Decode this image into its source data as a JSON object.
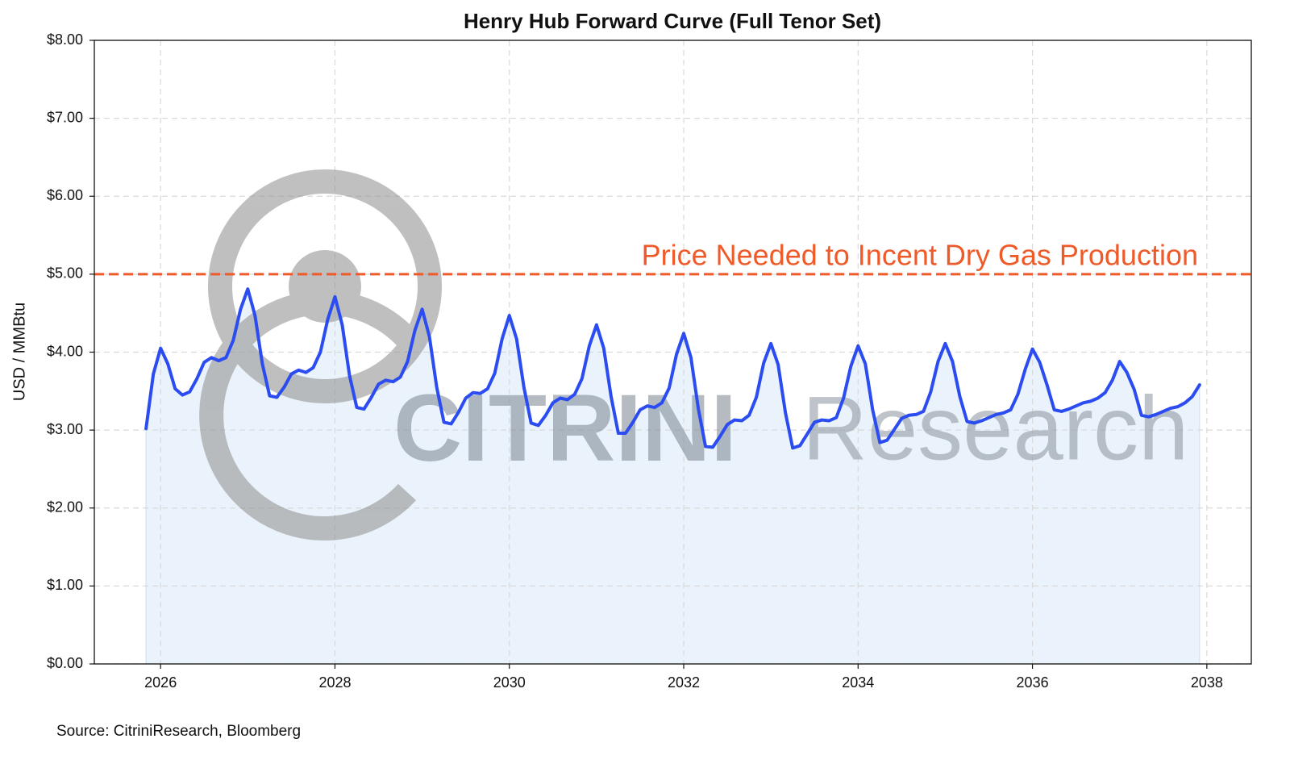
{
  "chart_data": {
    "type": "line",
    "title": "Henry Hub Forward Curve (Full Tenor Set)",
    "ylabel": "USD / MMBtu",
    "source": "Source: CitriniResearch, Bloomberg",
    "watermark": {
      "bold": "CITRINI",
      "light": "Research"
    },
    "color": "#2b4cf0",
    "fill_color": "#eaf3fb",
    "grid": true,
    "xlim": [
      2025.24,
      2038.51
    ],
    "xticks": [
      2026,
      2028,
      2030,
      2032,
      2034,
      2036,
      2038
    ],
    "ylim": [
      0,
      8
    ],
    "yticks": [
      {
        "value": 0,
        "label": "$0.00"
      },
      {
        "value": 1,
        "label": "$1.00"
      },
      {
        "value": 2,
        "label": "$2.00"
      },
      {
        "value": 3,
        "label": "$3.00"
      },
      {
        "value": 4,
        "label": "$4.00"
      },
      {
        "value": 5,
        "label": "$5.00"
      },
      {
        "value": 6,
        "label": "$6.00"
      },
      {
        "value": 7,
        "label": "$7.00"
      },
      {
        "value": 8,
        "label": "$8.00"
      }
    ],
    "reference_line": {
      "value": 5,
      "label": "Price Needed to Incent Dry Gas Production",
      "color": "#f05a28"
    },
    "x": [
      2025.833,
      2025.917,
      2026,
      2026.083,
      2026.167,
      2026.25,
      2026.333,
      2026.417,
      2026.5,
      2026.583,
      2026.667,
      2026.75,
      2026.833,
      2026.917,
      2027,
      2027.083,
      2027.167,
      2027.25,
      2027.333,
      2027.417,
      2027.5,
      2027.583,
      2027.667,
      2027.75,
      2027.833,
      2027.917,
      2028,
      2028.083,
      2028.167,
      2028.25,
      2028.333,
      2028.417,
      2028.5,
      2028.583,
      2028.667,
      2028.75,
      2028.833,
      2028.917,
      2029,
      2029.083,
      2029.167,
      2029.25,
      2029.333,
      2029.417,
      2029.5,
      2029.583,
      2029.667,
      2029.75,
      2029.833,
      2029.917,
      2030,
      2030.083,
      2030.167,
      2030.25,
      2030.333,
      2030.417,
      2030.5,
      2030.583,
      2030.667,
      2030.75,
      2030.833,
      2030.917,
      2031,
      2031.083,
      2031.167,
      2031.25,
      2031.333,
      2031.417,
      2031.5,
      2031.583,
      2031.667,
      2031.75,
      2031.833,
      2031.917,
      2032,
      2032.083,
      2032.167,
      2032.25,
      2032.333,
      2032.417,
      2032.5,
      2032.583,
      2032.667,
      2032.75,
      2032.833,
      2032.917,
      2033,
      2033.083,
      2033.167,
      2033.25,
      2033.333,
      2033.417,
      2033.5,
      2033.583,
      2033.667,
      2033.75,
      2033.833,
      2033.917,
      2034,
      2034.083,
      2034.167,
      2034.25,
      2034.333,
      2034.417,
      2034.5,
      2034.583,
      2034.667,
      2034.75,
      2034.833,
      2034.917,
      2035,
      2035.083,
      2035.167,
      2035.25,
      2035.333,
      2035.417,
      2035.5,
      2035.583,
      2035.667,
      2035.75,
      2035.833,
      2035.917,
      2036,
      2036.083,
      2036.167,
      2036.25,
      2036.333,
      2036.417,
      2036.5,
      2036.583,
      2036.667,
      2036.75,
      2036.833,
      2036.917,
      2037,
      2037.083,
      2037.167,
      2037.25,
      2037.333,
      2037.417,
      2037.5,
      2037.583,
      2037.667,
      2037.75,
      2037.833,
      2037.917
    ],
    "values": [
      3.02,
      3.72,
      4.05,
      3.85,
      3.53,
      3.45,
      3.49,
      3.66,
      3.87,
      3.93,
      3.89,
      3.93,
      4.15,
      4.55,
      4.81,
      4.47,
      3.85,
      3.44,
      3.42,
      3.55,
      3.72,
      3.77,
      3.74,
      3.8,
      4.0,
      4.42,
      4.71,
      4.35,
      3.7,
      3.29,
      3.27,
      3.42,
      3.59,
      3.64,
      3.62,
      3.68,
      3.88,
      4.28,
      4.55,
      4.2,
      3.55,
      3.1,
      3.08,
      3.23,
      3.41,
      3.48,
      3.47,
      3.53,
      3.73,
      4.17,
      4.47,
      4.17,
      3.55,
      3.09,
      3.06,
      3.19,
      3.35,
      3.41,
      3.39,
      3.46,
      3.66,
      4.08,
      4.35,
      4.05,
      3.43,
      2.96,
      2.96,
      3.1,
      3.26,
      3.31,
      3.29,
      3.35,
      3.54,
      3.97,
      4.24,
      3.93,
      3.28,
      2.79,
      2.78,
      2.92,
      3.07,
      3.13,
      3.12,
      3.19,
      3.42,
      3.86,
      4.11,
      3.84,
      3.22,
      2.77,
      2.8,
      2.95,
      3.1,
      3.13,
      3.12,
      3.16,
      3.41,
      3.82,
      4.08,
      3.85,
      3.26,
      2.84,
      2.87,
      3.01,
      3.15,
      3.19,
      3.2,
      3.24,
      3.49,
      3.88,
      4.11,
      3.88,
      3.43,
      3.11,
      3.09,
      3.12,
      3.16,
      3.2,
      3.22,
      3.26,
      3.46,
      3.78,
      4.04,
      3.87,
      3.58,
      3.26,
      3.24,
      3.27,
      3.31,
      3.35,
      3.37,
      3.41,
      3.48,
      3.64,
      3.88,
      3.74,
      3.52,
      3.19,
      3.17,
      3.2,
      3.24,
      3.28,
      3.3,
      3.35,
      3.43,
      3.58
    ]
  }
}
